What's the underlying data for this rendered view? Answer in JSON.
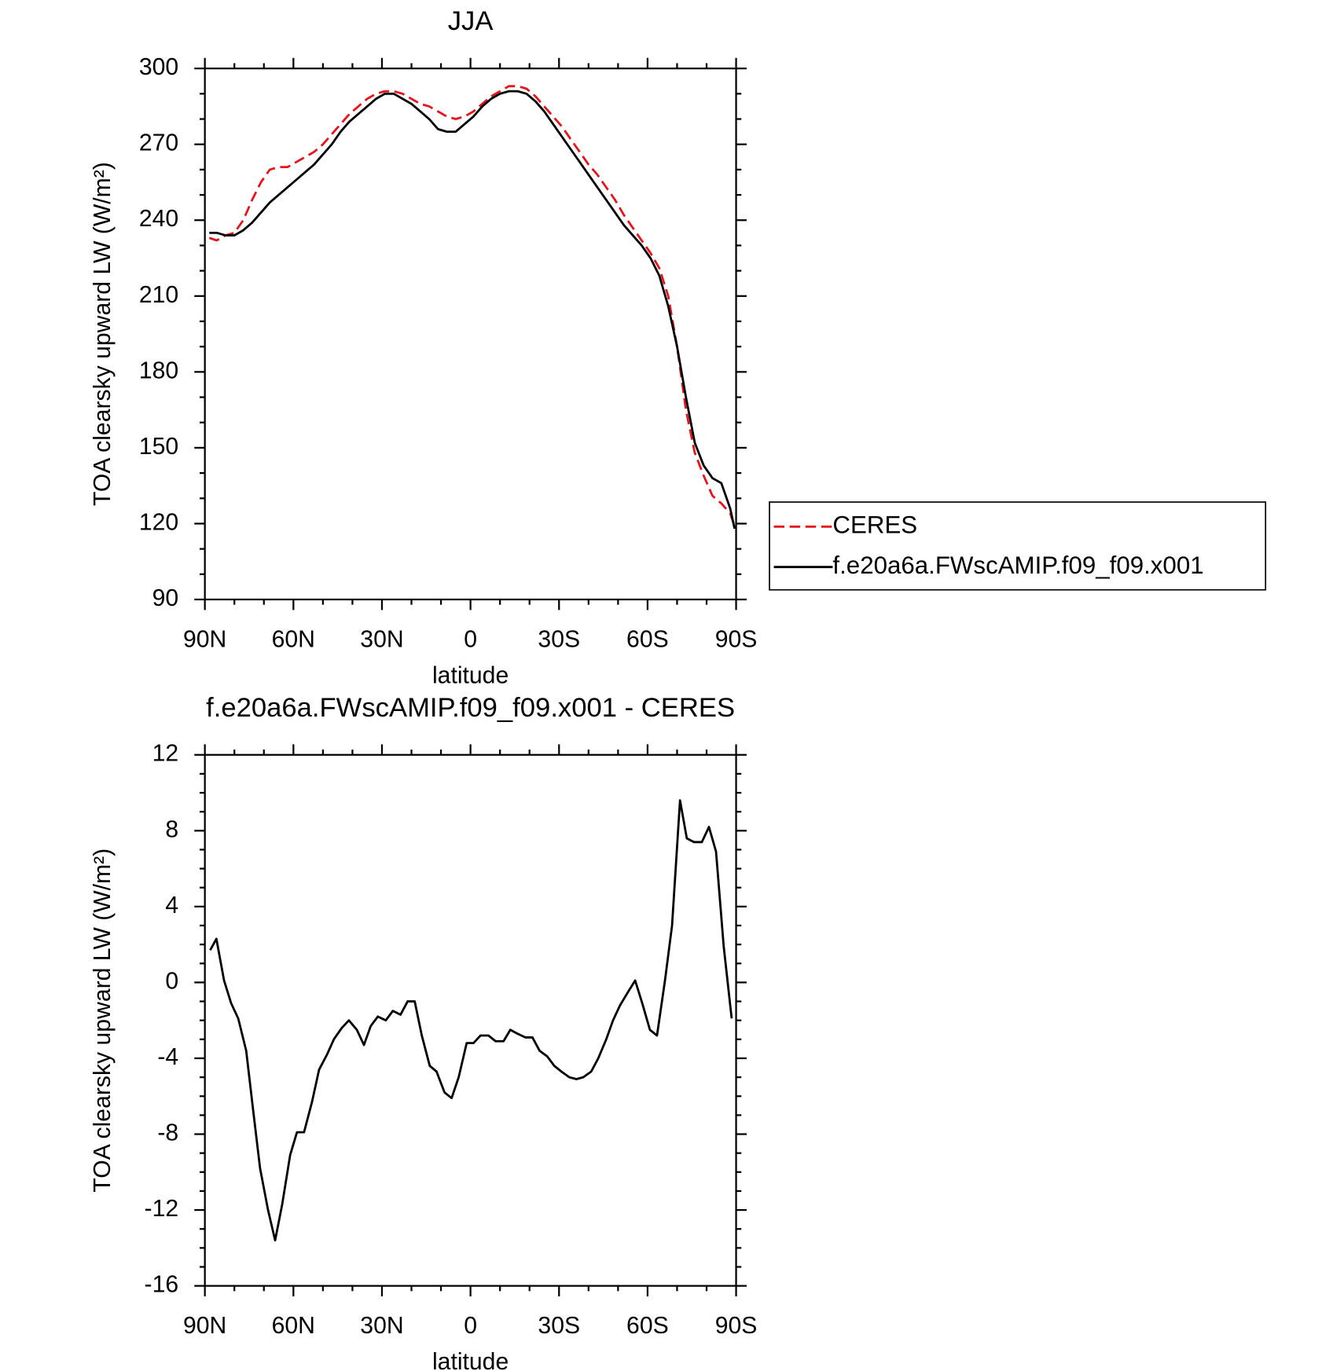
{
  "chart_data": [
    {
      "type": "line",
      "title": "JJA",
      "xlabel": "latitude",
      "ylabel": "TOA clearsky upward LW (W/m²)",
      "x": [
        88.5,
        86,
        83,
        80,
        77,
        74,
        71,
        68,
        65,
        62,
        59,
        56,
        53,
        50,
        47,
        44,
        41,
        38,
        35,
        32,
        29,
        26,
        23,
        20,
        17,
        14,
        11,
        8,
        5,
        2,
        -1,
        -4,
        -7,
        -10,
        -13,
        -16,
        -19,
        -22,
        -25,
        -28,
        -31,
        -34,
        -37,
        -40,
        -43,
        -46,
        -49,
        -52,
        -55,
        -58,
        -61,
        -64,
        -67,
        -70,
        -73,
        -76,
        -79,
        -82,
        -85,
        -88,
        -89.5
      ],
      "series": [
        {
          "name": "CERES",
          "color": "#e8141b",
          "dashed": true,
          "values": [
            233,
            232,
            234,
            235,
            240,
            248,
            255,
            260,
            261,
            261,
            263,
            265,
            267,
            270,
            274,
            278,
            282,
            285,
            288,
            290,
            291,
            291,
            290,
            288,
            286,
            285,
            283,
            281,
            280,
            281,
            283,
            286,
            289,
            291,
            293,
            293,
            292,
            289,
            285,
            281,
            277,
            272,
            267,
            262,
            258,
            253,
            248,
            242,
            237,
            232,
            227,
            221,
            210,
            190,
            165,
            148,
            139,
            131,
            128,
            124,
            119
          ]
        },
        {
          "name": "f.e20a6a.FWscAMIP.f09_f09.x001",
          "color": "#000000",
          "dashed": false,
          "values": [
            235,
            235,
            234,
            234,
            236,
            239,
            243,
            247,
            250,
            253,
            256,
            259,
            262,
            266,
            270,
            275,
            279,
            282,
            285,
            288,
            290,
            290,
            288,
            286,
            283,
            280,
            276,
            275,
            275,
            278,
            281,
            285,
            288,
            290,
            291,
            291,
            290,
            287,
            283,
            278,
            273,
            268,
            263,
            258,
            253,
            248,
            243,
            238,
            234,
            230,
            225,
            218,
            206,
            190,
            170,
            152,
            143,
            138,
            136,
            126,
            118
          ]
        }
      ],
      "xlim": [
        90,
        -90
      ],
      "xticks": [
        {
          "value": 90,
          "label": "90N"
        },
        {
          "value": 60,
          "label": "60N"
        },
        {
          "value": 30,
          "label": "30N"
        },
        0,
        {
          "value": -30,
          "label": "30S"
        },
        {
          "value": -60,
          "label": "60S"
        },
        {
          "value": -90,
          "label": "90S"
        }
      ],
      "ylim": [
        90,
        300
      ],
      "yticks": [
        90,
        120,
        150,
        180,
        210,
        240,
        270,
        300
      ],
      "legend": "right"
    },
    {
      "type": "line",
      "title": "f.e20a6a.FWscAMIP.f09_f09.x001 - CERES",
      "xlabel": "latitude",
      "ylabel": "TOA clearsky upward LW (W/m²)",
      "x": [
        88.2,
        86.1,
        83.5,
        81.1,
        78.7,
        76.0,
        73.6,
        71.3,
        68.6,
        66.2,
        63.8,
        61.1,
        58.8,
        56.4,
        53.7,
        51.3,
        48.6,
        46.3,
        43.6,
        41.2,
        38.5,
        36.1,
        33.8,
        31.4,
        28.7,
        26.3,
        23.7,
        21.3,
        18.9,
        16.5,
        13.8,
        11.5,
        8.8,
        6.4,
        4.0,
        1.3,
        -1.0,
        -3.4,
        -6.1,
        -8.5,
        -11.2,
        -13.5,
        -15.9,
        -18.6,
        -21.0,
        -23.4,
        -26.0,
        -28.4,
        -30.8,
        -33.5,
        -35.9,
        -38.2,
        -40.9,
        -43.3,
        -46.0,
        -48.3,
        -50.7,
        -53.4,
        -55.8,
        -58.2,
        -60.8,
        -63.2,
        -65.9,
        -68.3,
        -71.0,
        -73.3,
        -75.7,
        -78.4,
        -80.8,
        -83.2,
        -85.8,
        -88.5
      ],
      "series": [
        {
          "color": "#000000",
          "dashed": false,
          "values": [
            1.7,
            2.3,
            0.1,
            -1.1,
            -1.9,
            -3.6,
            -6.8,
            -9.8,
            -12.0,
            -13.6,
            -11.7,
            -9.1,
            -7.9,
            -7.9,
            -6.3,
            -4.6,
            -3.8,
            -3.0,
            -2.4,
            -2.0,
            -2.5,
            -3.3,
            -2.3,
            -1.8,
            -2.0,
            -1.5,
            -1.7,
            -1.0,
            -1.0,
            -2.8,
            -4.4,
            -4.7,
            -5.8,
            -6.1,
            -5.0,
            -3.2,
            -3.2,
            -2.8,
            -2.8,
            -3.1,
            -3.1,
            -2.5,
            -2.7,
            -2.9,
            -2.9,
            -3.6,
            -3.9,
            -4.4,
            -4.7,
            -5.0,
            -5.1,
            -5.0,
            -4.7,
            -4.0,
            -3.0,
            -2.0,
            -1.2,
            -0.5,
            0.1,
            -1.1,
            -2.5,
            -2.8,
            0.1,
            3.0,
            9.6,
            7.6,
            7.4,
            7.4,
            8.2,
            6.9,
            1.9,
            -1.9
          ]
        }
      ],
      "xlim": [
        90,
        -90
      ],
      "xticks": [
        {
          "value": 90,
          "label": "90N"
        },
        {
          "value": 60,
          "label": "60N"
        },
        {
          "value": 30,
          "label": "30N"
        },
        0,
        {
          "value": -30,
          "label": "30S"
        },
        {
          "value": -60,
          "label": "60S"
        },
        {
          "value": -90,
          "label": "90S"
        }
      ],
      "ylim": [
        -16,
        12
      ],
      "yticks": [
        -16,
        -12,
        -8,
        -4,
        0,
        4,
        8,
        12
      ]
    }
  ]
}
